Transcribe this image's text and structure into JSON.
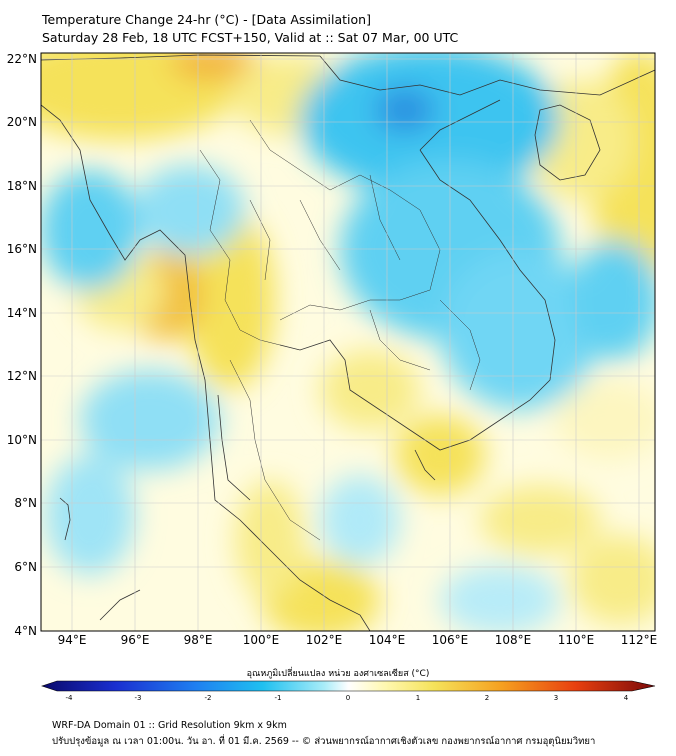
{
  "title_line1": "Temperature Change 24-hr (°C) - [Data Assimilation]",
  "title_line2": "Saturday 28 Feb, 18 UTC FCST+150, Valid at :: Sat 07 Mar, 00 UTC",
  "lat_labels": [
    "22°N",
    "20°N",
    "18°N",
    "16°N",
    "14°N",
    "12°N",
    "10°N",
    "8°N",
    "6°N",
    "4°N"
  ],
  "lon_labels": [
    "94°E",
    "96°E",
    "98°E",
    "100°E",
    "102°E",
    "104°E",
    "106°E",
    "108°E",
    "110°E",
    "112°E"
  ],
  "colorbar": {
    "title": "อุณหภูมิเปลี่ยนแปลง หน่วย องศาเซลเซียส (°C)",
    "ticks": [
      "-4",
      "-3",
      "-2",
      "-1",
      "0",
      "1",
      "2",
      "3",
      "4"
    ],
    "min": -4,
    "max": 4
  },
  "footer_line1": "WRF-DA Domain 01 :: Grid Resolution 9km x 9km",
  "footer_line2": "ปรับปรุงข้อมูล ณ เวลา 01:00น. วัน อา. ที่ 01 มี.ค. 2569 -- © ส่วนพยากรณ์อากาศเชิงตัวเลข กองพยากรณ์อากาศ กรมอุตุนิยมวิทยา",
  "colors": {
    "cold": "#1fb6ee",
    "warm": "#f5e25a",
    "neutral": "#ffffff",
    "coast": "#333333"
  }
}
